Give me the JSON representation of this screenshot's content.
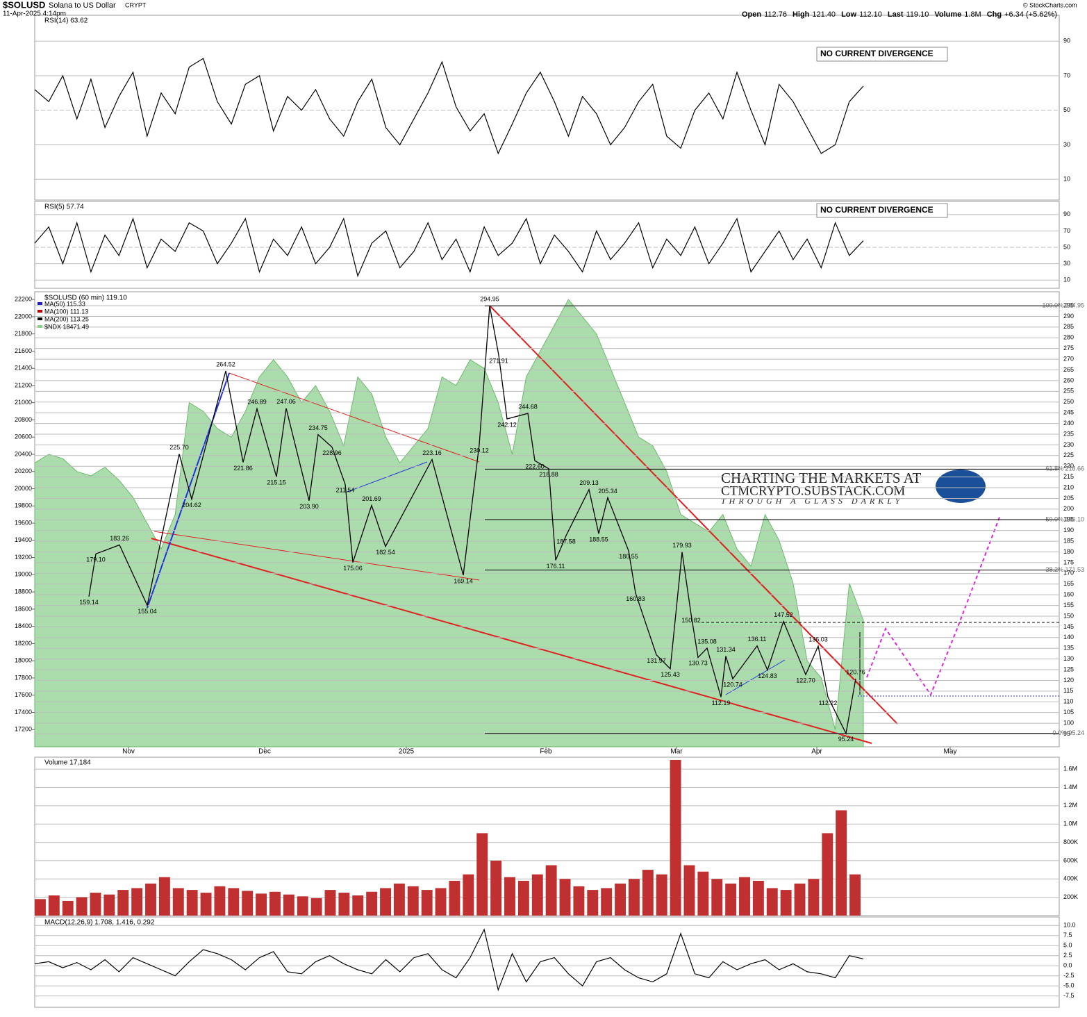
{
  "header": {
    "symbol": "$SOLUSD",
    "name": "Solana to US Dollar",
    "exchange": "CRYPT",
    "date": "11-Apr-2025 4:14pm",
    "quote": [
      {
        "label": "Open",
        "value": "112.76"
      },
      {
        "label": "High",
        "value": "121.40"
      },
      {
        "label": "Low",
        "value": "112.10"
      },
      {
        "label": "Last",
        "value": "119.10"
      },
      {
        "label": "Volume",
        "value": "1.8M"
      },
      {
        "label": "Chg",
        "value": "+6.34 (+5.62%)"
      }
    ],
    "copyright": "© StockCharts.com"
  },
  "months": [
    "Nov",
    "Dec",
    "2025",
    "Feb",
    "Mar",
    "Apr",
    "May"
  ],
  "watermark": [
    "CHARTING THE MARKETS AT",
    "CTMCRYPTO.SUBSTACK.COM",
    "THROUGH A GLASS DARKLY"
  ],
  "chart_data": [
    {
      "type": "line",
      "title": "RSI(14) 63.62",
      "note": "NO CURRENT DIVERGENCE",
      "color": "#000000",
      "ylim": [
        -2,
        105
      ],
      "yticks": [
        10,
        30,
        50,
        70,
        90
      ],
      "values": [
        62,
        55,
        70,
        45,
        68,
        40,
        58,
        72,
        35,
        60,
        48,
        75,
        80,
        55,
        42,
        65,
        70,
        38,
        58,
        50,
        62,
        45,
        35,
        55,
        68,
        40,
        30,
        45,
        60,
        78,
        52,
        38,
        48,
        25,
        42,
        60,
        72,
        55,
        35,
        58,
        48,
        30,
        40,
        55,
        65,
        35,
        28,
        50,
        60,
        45,
        72,
        50,
        30,
        65,
        55,
        40,
        25,
        30,
        55,
        64
      ]
    },
    {
      "type": "line",
      "title": "RSI(5) 57.74",
      "note": "NO CURRENT DIVERGENCE",
      "color": "#000000",
      "ylim": [
        0,
        106
      ],
      "yticks": [
        10,
        30,
        50,
        70,
        90
      ],
      "values": [
        55,
        75,
        30,
        80,
        20,
        65,
        40,
        85,
        25,
        60,
        45,
        80,
        70,
        30,
        55,
        85,
        20,
        60,
        40,
        75,
        30,
        50,
        85,
        15,
        55,
        70,
        25,
        45,
        80,
        35,
        60,
        20,
        75,
        40,
        55,
        85,
        30,
        65,
        45,
        20,
        70,
        35,
        55,
        80,
        25,
        60,
        40,
        75,
        30,
        55,
        85,
        20,
        45,
        70,
        35,
        60,
        25,
        80,
        40,
        58
      ]
    },
    {
      "type": "price",
      "title": "$SOLUSD (60 min) 119.10",
      "legend": [
        {
          "name": "MA(50) 115.33",
          "color": "#2020c0"
        },
        {
          "name": "MA(100) 111.13",
          "color": "#c00000"
        },
        {
          "name": "MA(200) 113.25",
          "color": "#000000"
        }
      ],
      "ylim": [
        89,
        301.5
      ],
      "yticks": [
        95,
        100,
        105,
        110,
        115,
        120,
        125,
        130,
        135,
        140,
        145,
        150,
        155,
        160,
        165,
        170,
        175,
        180,
        185,
        190,
        195,
        200,
        205,
        210,
        215,
        220,
        225,
        230,
        235,
        240,
        245,
        250,
        255,
        260,
        265,
        270,
        275,
        280,
        285,
        290,
        295
      ],
      "y2lim": [
        17000,
        22290
      ],
      "y2ticks": [
        17200,
        17400,
        17600,
        17800,
        18000,
        18200,
        18400,
        18600,
        18800,
        19000,
        19200,
        19400,
        19600,
        19800,
        20000,
        20200,
        20400,
        20600,
        20800,
        21000,
        21200,
        21400,
        21600,
        21800,
        22000,
        22200
      ],
      "series": [
        {
          "name": "$NDX 18471.49",
          "color": "#8fd08f",
          "axis": "y2",
          "values": [
            20300,
            20400,
            20350,
            20200,
            20150,
            20250,
            20100,
            19900,
            19600,
            19300,
            19700,
            21000,
            20900,
            20700,
            20600,
            20900,
            21300,
            21500,
            21300,
            21000,
            21200,
            20900,
            20500,
            21300,
            21100,
            20600,
            20300,
            20500,
            20700,
            21300,
            21200,
            21500,
            21400,
            21000,
            20400,
            21300,
            21600,
            21900,
            22200,
            22000,
            21800,
            21400,
            21000,
            20600,
            20500,
            20200,
            19700,
            19600,
            19500,
            19700,
            19300,
            19100,
            19700,
            19400,
            18900,
            18000,
            17800,
            17200,
            18900,
            18471.49
          ]
        },
        {
          "name": "$SOLUSD",
          "color": "#000000",
          "values": [
            159.14,
            179.1,
            183.26,
            155.04,
            225.7,
            204.62,
            264.52,
            221.86,
            246.89,
            215.15,
            247.06,
            203.9,
            234.75,
            228.96,
            211.54,
            175.06,
            201.69,
            182.54,
            223.16,
            169.14,
            230.12,
            294.95,
            271.91,
            242.12,
            244.68,
            222.6,
            218.88,
            176.11,
            187.58,
            209.13,
            188.55,
            205.34,
            180.55,
            160.83,
            131.97,
            125.43,
            179.93,
            150.82,
            130.73,
            135.08,
            112.19,
            131.34,
            120.74,
            136.11,
            124.83,
            147.52,
            122.7,
            136.03,
            112.22,
            95.24,
            120.76
          ],
          "value_labels": [
            "159.14",
            "179.10",
            "183.26",
            "155.04",
            "225.70",
            "204.62",
            "264.52",
            "221.86",
            "246.89",
            "215.15",
            "247.06",
            "203.90",
            "234.75",
            "228.96",
            "211.54",
            "175.06",
            "201.69",
            "182.54",
            "223.16",
            "169.14",
            "230.12",
            "294.95",
            "271.91",
            "242.12",
            "244.68",
            "222.60",
            "218.88",
            "176.11",
            "187.58",
            "209.13",
            "188.55",
            "205.34",
            "180.55",
            "160.83",
            "131.97",
            "125.43",
            "179.93",
            "150.82",
            "130.73",
            "135.08",
            "112.19",
            "131.34",
            "120.74",
            "136.11",
            "124.83",
            "147.52",
            "122.70",
            "136.03",
            "112.22",
            "95.24",
            "120.76"
          ]
        }
      ],
      "fib": [
        {
          "label": "100.0% 294.95",
          "value": 294.95
        },
        {
          "label": "61.8% 218.66",
          "value": 218.66
        },
        {
          "label": "50.0% 195.10",
          "value": 195.1
        },
        {
          "label": "38.2% 171.53",
          "value": 171.53
        },
        {
          "label": "0.0% 95.24",
          "value": 95.24
        }
      ]
    },
    {
      "type": "bar",
      "title": "Volume 17,184",
      "color": "#c03030",
      "ylim": [
        0,
        1730000
      ],
      "yticks": [
        {
          "value": 200000,
          "label": "200K"
        },
        {
          "value": 400000,
          "label": "400K"
        },
        {
          "value": 600000,
          "label": "600K"
        },
        {
          "value": 800000,
          "label": "800K"
        },
        {
          "value": 1000000,
          "label": "1.0M"
        },
        {
          "value": 1200000,
          "label": "1.2M"
        },
        {
          "value": 1400000,
          "label": "1.4M"
        },
        {
          "value": 1600000,
          "label": "1.6M"
        }
      ],
      "values": [
        180000,
        220000,
        160000,
        200000,
        250000,
        230000,
        280000,
        300000,
        350000,
        420000,
        300000,
        280000,
        250000,
        320000,
        300000,
        270000,
        240000,
        260000,
        230000,
        210000,
        190000,
        280000,
        250000,
        220000,
        260000,
        300000,
        350000,
        320000,
        280000,
        300000,
        380000,
        450000,
        900000,
        600000,
        420000,
        380000,
        450000,
        550000,
        400000,
        320000,
        280000,
        300000,
        350000,
        400000,
        500000,
        450000,
        1700000,
        550000,
        480000,
        400000,
        350000,
        420000,
        380000,
        300000,
        280000,
        350000,
        400000,
        900000,
        1150000,
        450000
      ]
    },
    {
      "type": "line",
      "title": "MACD(12,26,9) 1.708, 1.416, 0.292",
      "color": "#000000",
      "ylim": [
        -10.3,
        12.1
      ],
      "yticks": [
        {
          "value": -7.5,
          "label": "-7.5"
        },
        {
          "value": -5,
          "label": "-5.0"
        },
        {
          "value": -2.5,
          "label": "-2.5"
        },
        {
          "value": 0,
          "label": "0.0"
        },
        {
          "value": 2.5,
          "label": "2.5"
        },
        {
          "value": 5,
          "label": "5.0"
        },
        {
          "value": 7.5,
          "label": "7.5"
        },
        {
          "value": 10,
          "label": "10.0"
        }
      ],
      "values": [
        0.5,
        1,
        -0.5,
        0.8,
        -1,
        1.5,
        -1.5,
        2,
        0.5,
        -1,
        -2.5,
        1,
        4,
        3,
        1.5,
        -1,
        2,
        3.5,
        -1.5,
        -2,
        1,
        2.5,
        0.5,
        -1,
        -2,
        1.5,
        -1.5,
        2,
        3,
        -1,
        -3,
        2,
        9,
        -6,
        3,
        -4,
        1,
        2,
        -2,
        -5,
        1,
        2,
        -1,
        -3,
        -4,
        -2,
        8,
        -2,
        -3,
        1,
        -1,
        0.5,
        1.5,
        -1,
        0.5,
        -1.5,
        -2,
        -3,
        2.5,
        1.708
      ]
    }
  ]
}
